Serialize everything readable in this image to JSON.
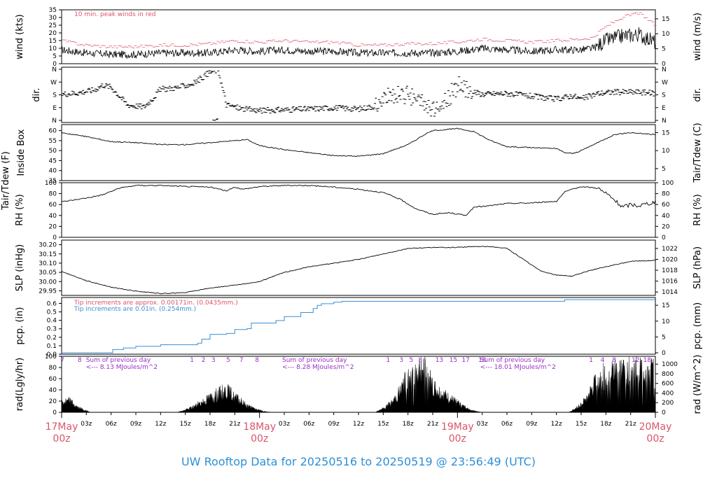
{
  "colors": {
    "red": "#d9556b",
    "blue": "#3a8fd6",
    "purple": "#9b30c8",
    "black": "#000000"
  },
  "footer": "UW Rooftop Data for 20250516  to  20250519 @ 23:56:49  (UTC)",
  "x_axis": {
    "range_hours": [
      0,
      72
    ],
    "hour_ticks": [
      {
        "h": 3,
        "label": "03z"
      },
      {
        "h": 6,
        "label": "06z"
      },
      {
        "h": 9,
        "label": "09z"
      },
      {
        "h": 12,
        "label": "12z"
      },
      {
        "h": 15,
        "label": "15z"
      },
      {
        "h": 18,
        "label": "18z"
      },
      {
        "h": 21,
        "label": "21z"
      },
      {
        "h": 27,
        "label": "03z"
      },
      {
        "h": 30,
        "label": "06z"
      },
      {
        "h": 33,
        "label": "09z"
      },
      {
        "h": 36,
        "label": "12z"
      },
      {
        "h": 39,
        "label": "15z"
      },
      {
        "h": 42,
        "label": "18z"
      },
      {
        "h": 45,
        "label": "21z"
      },
      {
        "h": 51,
        "label": "03z"
      },
      {
        "h": 54,
        "label": "06z"
      },
      {
        "h": 57,
        "label": "09z"
      },
      {
        "h": 60,
        "label": "12z"
      },
      {
        "h": 63,
        "label": "15z"
      },
      {
        "h": 66,
        "label": "18z"
      },
      {
        "h": 69,
        "label": "21z"
      }
    ],
    "day_ticks": [
      {
        "h": 0,
        "label": "17May",
        "sub": "00z"
      },
      {
        "h": 24,
        "label": "18May",
        "sub": "00z"
      },
      {
        "h": 48,
        "label": "19May",
        "sub": "00z"
      },
      {
        "h": 72,
        "label": "20May",
        "sub": "00z"
      }
    ]
  },
  "panels": {
    "wind": {
      "left_label": "wind (kts)",
      "right_label": "wind (m/s)",
      "left_ticks": [
        "0",
        "5",
        "10",
        "15",
        "20",
        "25",
        "30",
        "35"
      ],
      "left_range": [
        0,
        35
      ],
      "right_ticks": [
        "0",
        "5",
        "10",
        "15"
      ],
      "note": "10 min. peak winds in red"
    },
    "dir": {
      "left_label": "dir.",
      "right_label": "dir.",
      "ticks": [
        "N",
        "E",
        "S",
        "W",
        "N"
      ]
    },
    "temp": {
      "left_label": "Inside Box",
      "outer_label": "Tair/Tdew (F)",
      "right_label": "Tair/Tdew (C)",
      "left_ticks": [
        "35",
        "40",
        "45",
        "50",
        "55",
        "60"
      ],
      "left_range": [
        35,
        63
      ],
      "right_ticks": [
        "5",
        "10",
        "15"
      ]
    },
    "rh": {
      "left_label": "RH (%)",
      "right_label": "RH (%)",
      "left_ticks": [
        "0",
        "20",
        "40",
        "60",
        "80",
        "100"
      ],
      "left_range": [
        0,
        100
      ],
      "right_ticks": [
        "0",
        "20",
        "40",
        "60",
        "80",
        "100"
      ]
    },
    "slp": {
      "left_label": "SLP (inHg)",
      "right_label": "SLP (hPa)",
      "left_ticks": [
        "29.95",
        "30.00",
        "30.05",
        "30.10",
        "30.15",
        "30.20"
      ],
      "left_range": [
        29.925,
        30.225
      ],
      "right_ticks": [
        "1014",
        "1016",
        "1018",
        "1020",
        "1022"
      ]
    },
    "pcp": {
      "left_label": "pcp. (in)",
      "right_label": "pcp. (mm)",
      "left_ticks": [
        "0.0",
        "0.1",
        "0.2",
        "0.3",
        "0.4",
        "0.5",
        "0.6"
      ],
      "left_range": [
        0,
        0.67
      ],
      "right_ticks": [
        "0",
        "5",
        "10",
        "15"
      ],
      "note_red": "Tip increments are approx. 0.00171in. (0.0435mm.)",
      "note_blue": "Tip increments are 0.01in. (0.254mm.)"
    },
    "rad": {
      "left_label": "rad(Lgly/hr)",
      "right_label": "rad (W/m^2)",
      "left_ticks": [
        "0",
        "20",
        "40",
        "60",
        "80",
        "100"
      ],
      "left_range": [
        0,
        100
      ],
      "right_ticks": [
        "0",
        "200",
        "400",
        "600",
        "800",
        "1000"
      ],
      "sum_notes": [
        {
          "h": 3.2,
          "label": "Sum of previous day",
          "value": "<--- 8.13 MJoules/m^2"
        },
        {
          "h": 27.0,
          "label": "Sum of previous day",
          "value": "<--- 8.28 MJoules/m^2"
        },
        {
          "h": 51.0,
          "label": "Sum of previous day",
          "value": "<--- 18.01 MJoules/m^2"
        }
      ],
      "hour_marks": [
        {
          "h": 0.1,
          "t": "7"
        },
        {
          "h": 2.2,
          "t": "8"
        },
        {
          "h": 15.8,
          "t": "1"
        },
        {
          "h": 17.2,
          "t": "2"
        },
        {
          "h": 18.4,
          "t": "3"
        },
        {
          "h": 20.2,
          "t": "5"
        },
        {
          "h": 21.8,
          "t": "7"
        },
        {
          "h": 23.7,
          "t": "8"
        },
        {
          "h": 39.6,
          "t": "1"
        },
        {
          "h": 41.2,
          "t": "3"
        },
        {
          "h": 42.4,
          "t": "5"
        },
        {
          "h": 43.5,
          "t": "8"
        },
        {
          "h": 45.8,
          "t": "13"
        },
        {
          "h": 47.5,
          "t": "15"
        },
        {
          "h": 49.0,
          "t": "17"
        },
        {
          "h": 51.0,
          "t": "18"
        },
        {
          "h": 64.2,
          "t": "1"
        },
        {
          "h": 65.6,
          "t": "4"
        },
        {
          "h": 67.0,
          "t": "8"
        },
        {
          "h": 69.6,
          "t": "12"
        },
        {
          "h": 71.0,
          "t": "18"
        }
      ]
    }
  },
  "chart_data": {
    "type": "line",
    "x_unit": "hours since 17May 00z",
    "series": {
      "wind_kts": [
        [
          0,
          9
        ],
        [
          3,
          7
        ],
        [
          6,
          6
        ],
        [
          9,
          6
        ],
        [
          12,
          7
        ],
        [
          15,
          7
        ],
        [
          18,
          7
        ],
        [
          21,
          9
        ],
        [
          24,
          8
        ],
        [
          27,
          9
        ],
        [
          30,
          8
        ],
        [
          33,
          8
        ],
        [
          36,
          7
        ],
        [
          39,
          7
        ],
        [
          42,
          7
        ],
        [
          45,
          7
        ],
        [
          48,
          8
        ],
        [
          51,
          10
        ],
        [
          54,
          9
        ],
        [
          57,
          8
        ],
        [
          60,
          9
        ],
        [
          63,
          9
        ],
        [
          64.5,
          10
        ],
        [
          66,
          15
        ],
        [
          68,
          18
        ],
        [
          70,
          19
        ],
        [
          72,
          14
        ]
      ],
      "wind_peak_kts": [
        [
          0,
          15
        ],
        [
          3,
          12
        ],
        [
          6,
          11
        ],
        [
          9,
          11
        ],
        [
          12,
          12
        ],
        [
          15,
          12
        ],
        [
          18,
          13
        ],
        [
          21,
          15
        ],
        [
          24,
          14
        ],
        [
          27,
          15
        ],
        [
          30,
          14
        ],
        [
          33,
          14
        ],
        [
          36,
          12
        ],
        [
          39,
          12
        ],
        [
          42,
          13
        ],
        [
          45,
          13
        ],
        [
          48,
          14
        ],
        [
          51,
          16
        ],
        [
          54,
          15
        ],
        [
          57,
          14
        ],
        [
          60,
          15
        ],
        [
          63,
          16
        ],
        [
          64.5,
          17
        ],
        [
          66,
          24
        ],
        [
          68,
          30
        ],
        [
          70,
          33
        ],
        [
          72,
          25
        ]
      ],
      "dir_deg": [
        [
          0,
          185
        ],
        [
          2,
          195
        ],
        [
          4,
          215
        ],
        [
          5,
          250
        ],
        [
          6,
          235
        ],
        [
          8,
          110
        ],
        [
          10,
          95
        ],
        [
          11,
          150
        ],
        [
          12,
          220
        ],
        [
          14,
          230
        ],
        [
          16,
          260
        ],
        [
          17,
          300
        ],
        [
          18,
          340
        ],
        [
          19,
          355
        ],
        [
          20,
          110
        ],
        [
          22,
          80
        ],
        [
          24,
          70
        ],
        [
          27,
          75
        ],
        [
          30,
          80
        ],
        [
          33,
          90
        ],
        [
          36,
          80
        ],
        [
          38,
          100
        ],
        [
          40,
          170
        ],
        [
          42,
          200
        ],
        [
          44,
          100
        ],
        [
          46,
          90
        ],
        [
          48,
          240
        ],
        [
          50,
          200
        ],
        [
          51,
          185
        ],
        [
          54,
          190
        ],
        [
          57,
          170
        ],
        [
          60,
          150
        ],
        [
          62,
          175
        ],
        [
          63,
          150
        ],
        [
          65,
          190
        ],
        [
          67,
          200
        ],
        [
          70,
          200
        ],
        [
          72,
          190
        ]
      ],
      "temp_f": [
        [
          0,
          59
        ],
        [
          3,
          57
        ],
        [
          6,
          54.5
        ],
        [
          9,
          54
        ],
        [
          12,
          53
        ],
        [
          15,
          53
        ],
        [
          18,
          54
        ],
        [
          21,
          55
        ],
        [
          22.5,
          55.5
        ],
        [
          24,
          52.5
        ],
        [
          27,
          50.5
        ],
        [
          30,
          49
        ],
        [
          33,
          47.5
        ],
        [
          36,
          47.2
        ],
        [
          39,
          48.5
        ],
        [
          42,
          53
        ],
        [
          44,
          58
        ],
        [
          45,
          60
        ],
        [
          48,
          61
        ],
        [
          50,
          59.5
        ],
        [
          52,
          55
        ],
        [
          54,
          52
        ],
        [
          57,
          51.5
        ],
        [
          60,
          51
        ],
        [
          61,
          49
        ],
        [
          62,
          48.5
        ],
        [
          63,
          50
        ],
        [
          65,
          54
        ],
        [
          67,
          58
        ],
        [
          69,
          59
        ],
        [
          72,
          58
        ]
      ],
      "rh_pct": [
        [
          0,
          65
        ],
        [
          3,
          72
        ],
        [
          5,
          78
        ],
        [
          7,
          90
        ],
        [
          9,
          95
        ],
        [
          12,
          95
        ],
        [
          15,
          93
        ],
        [
          18,
          92
        ],
        [
          20,
          85
        ],
        [
          21,
          92
        ],
        [
          22,
          88
        ],
        [
          24,
          93
        ],
        [
          27,
          95
        ],
        [
          30,
          95
        ],
        [
          33,
          92
        ],
        [
          36,
          88
        ],
        [
          39,
          82
        ],
        [
          41,
          70
        ],
        [
          43,
          52
        ],
        [
          45,
          42
        ],
        [
          47,
          45
        ],
        [
          49,
          40
        ],
        [
          50,
          55
        ],
        [
          52,
          58
        ],
        [
          54,
          62
        ],
        [
          57,
          63
        ],
        [
          60,
          66
        ],
        [
          61,
          83
        ],
        [
          63,
          93
        ],
        [
          65,
          90
        ],
        [
          66.5,
          75
        ],
        [
          68,
          55
        ],
        [
          69,
          60
        ],
        [
          70,
          58
        ],
        [
          72,
          65
        ]
      ],
      "slp_inhg": [
        [
          0,
          30.055
        ],
        [
          3,
          30.005
        ],
        [
          6,
          29.97
        ],
        [
          9,
          29.948
        ],
        [
          12,
          29.935
        ],
        [
          15,
          29.94
        ],
        [
          18,
          29.965
        ],
        [
          21,
          29.98
        ],
        [
          24,
          30.0
        ],
        [
          27,
          30.05
        ],
        [
          30,
          30.08
        ],
        [
          33,
          30.1
        ],
        [
          36,
          30.12
        ],
        [
          39,
          30.15
        ],
        [
          42,
          30.18
        ],
        [
          45,
          30.185
        ],
        [
          48,
          30.185
        ],
        [
          50,
          30.19
        ],
        [
          52,
          30.19
        ],
        [
          54,
          30.18
        ],
        [
          56,
          30.12
        ],
        [
          58,
          30.06
        ],
        [
          60,
          30.035
        ],
        [
          62,
          30.03
        ],
        [
          64,
          30.06
        ],
        [
          66,
          30.08
        ],
        [
          69,
          30.11
        ],
        [
          72,
          30.115
        ]
      ],
      "pcp_in": [
        [
          0,
          0.0
        ],
        [
          6,
          0.0
        ],
        [
          6.2,
          0.04
        ],
        [
          7.5,
          0.06
        ],
        [
          9,
          0.08
        ],
        [
          12,
          0.1
        ],
        [
          16.5,
          0.12
        ],
        [
          17,
          0.17
        ],
        [
          18,
          0.23
        ],
        [
          20,
          0.24
        ],
        [
          21,
          0.29
        ],
        [
          22.5,
          0.3
        ],
        [
          23,
          0.37
        ],
        [
          26,
          0.4
        ],
        [
          27,
          0.45
        ],
        [
          29,
          0.5
        ],
        [
          30.5,
          0.55
        ],
        [
          31,
          0.59
        ],
        [
          31.5,
          0.61
        ],
        [
          33,
          0.63
        ],
        [
          34,
          0.64
        ],
        [
          60,
          0.64
        ],
        [
          61,
          0.66
        ],
        [
          72,
          0.66
        ]
      ],
      "rad_lgly_hr": [
        [
          0,
          22
        ],
        [
          1,
          25
        ],
        [
          2,
          10
        ],
        [
          3.5,
          0
        ],
        [
          14,
          0
        ],
        [
          15,
          5
        ],
        [
          16,
          12
        ],
        [
          17,
          22
        ],
        [
          18,
          32
        ],
        [
          19,
          40
        ],
        [
          20,
          48
        ],
        [
          21,
          32
        ],
        [
          22,
          20
        ],
        [
          23,
          10
        ],
        [
          24.5,
          2
        ],
        [
          25.5,
          0
        ],
        [
          38,
          0
        ],
        [
          39,
          8
        ],
        [
          40,
          20
        ],
        [
          41,
          45
        ],
        [
          42,
          75
        ],
        [
          43,
          90
        ],
        [
          44,
          95
        ],
        [
          45,
          55
        ],
        [
          46,
          40
        ],
        [
          47,
          30
        ],
        [
          48,
          20
        ],
        [
          49,
          10
        ],
        [
          50,
          3
        ],
        [
          51,
          0
        ],
        [
          61.5,
          0
        ],
        [
          62.5,
          10
        ],
        [
          63.5,
          25
        ],
        [
          64.5,
          55
        ],
        [
          65.5,
          78
        ],
        [
          66.5,
          85
        ],
        [
          67.5,
          88
        ],
        [
          69,
          90
        ],
        [
          70,
          92
        ],
        [
          71,
          90
        ],
        [
          72,
          85
        ]
      ]
    }
  }
}
